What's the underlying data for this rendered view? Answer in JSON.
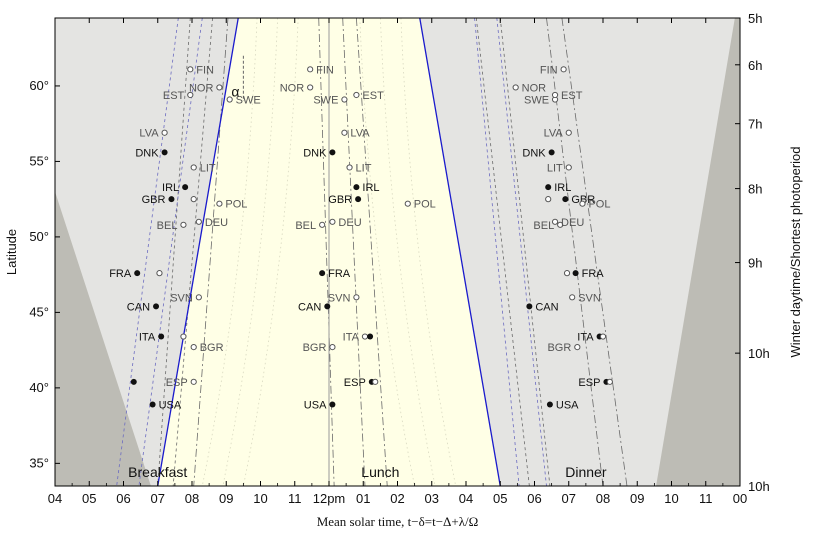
{
  "chart_data": {
    "type": "scatter",
    "xlabel": "Mean solar time, t−δ=t−Δ+λ/Ω",
    "ylabel": "Latitude",
    "y2label": "Winter daytime/Shortest photoperiod",
    "alpha_label": "α",
    "xlim": [
      4,
      24
    ],
    "ylim": [
      33.5,
      64.5
    ],
    "x_ticks": [
      {
        "value": 4,
        "label": "04"
      },
      {
        "value": 5,
        "label": "05"
      },
      {
        "value": 6,
        "label": "06"
      },
      {
        "value": 7,
        "label": "07"
      },
      {
        "value": 8,
        "label": "08"
      },
      {
        "value": 9,
        "label": "09"
      },
      {
        "value": 10,
        "label": "10"
      },
      {
        "value": 11,
        "label": "11"
      },
      {
        "value": 12,
        "label": "12pm"
      },
      {
        "value": 13,
        "label": "01"
      },
      {
        "value": 14,
        "label": "02"
      },
      {
        "value": 15,
        "label": "03"
      },
      {
        "value": 16,
        "label": "04"
      },
      {
        "value": 17,
        "label": "05"
      },
      {
        "value": 18,
        "label": "06"
      },
      {
        "value": 19,
        "label": "07"
      },
      {
        "value": 20,
        "label": "08"
      },
      {
        "value": 21,
        "label": "09"
      },
      {
        "value": 22,
        "label": "10"
      },
      {
        "value": 23,
        "label": "11"
      },
      {
        "value": 24,
        "label": "00"
      }
    ],
    "y_ticks": [
      {
        "value": 35,
        "label": "35°"
      },
      {
        "value": 40,
        "label": "40°"
      },
      {
        "value": 45,
        "label": "45°"
      },
      {
        "value": 50,
        "label": "50°"
      },
      {
        "value": 55,
        "label": "55°"
      },
      {
        "value": 60,
        "label": "60°"
      }
    ],
    "y2_ticks": [
      {
        "value": 64.5,
        "label": "5h"
      },
      {
        "value": 61.4,
        "label": "6h"
      },
      {
        "value": 57.5,
        "label": "7h"
      },
      {
        "value": 53.2,
        "label": "8h"
      },
      {
        "value": 48.3,
        "label": "9h"
      },
      {
        "value": 42.3,
        "label": "10h"
      }
    ],
    "bottom_right_label": "10h",
    "meals": [
      {
        "label": "Breakfast",
        "x": 7.0
      },
      {
        "label": "Lunch",
        "x": 13.5
      },
      {
        "label": "Dinner",
        "x": 19.5
      }
    ],
    "colors": {
      "daylight": "#ffffe6",
      "twilight": "#e4e4e2",
      "night": "#bdbcb5",
      "frame": "#000000",
      "sun_line": "#1a1acc",
      "noon_line": "#999999",
      "dash_line": "#6a6a6a",
      "filled_marker": "#111111",
      "hollow_marker": "#555555",
      "bold_label": "#111111",
      "light_label": "#555555"
    },
    "series": [
      {
        "name": "Breakfast",
        "points": [
          {
            "label": "FIN",
            "x": 7.95,
            "y": 61.1,
            "filled": false,
            "side": "right"
          },
          {
            "label": "NOR",
            "x": 8.8,
            "y": 59.9,
            "filled": false,
            "side": "left"
          },
          {
            "label": "EST",
            "x": 7.95,
            "y": 59.4,
            "filled": false,
            "side": "left"
          },
          {
            "label": "SWE",
            "x": 9.1,
            "y": 59.1,
            "filled": false,
            "side": "right"
          },
          {
            "label": "LVA",
            "x": 7.2,
            "y": 56.9,
            "filled": false,
            "side": "left"
          },
          {
            "label": "DNK",
            "x": 7.2,
            "y": 55.6,
            "filled": true,
            "side": "left"
          },
          {
            "label": "LIT",
            "x": 8.05,
            "y": 54.6,
            "filled": false,
            "side": "right"
          },
          {
            "label": "IRL",
            "x": 7.8,
            "y": 53.3,
            "filled": true,
            "side": "left"
          },
          {
            "label": "GBR",
            "x": 7.4,
            "y": 52.5,
            "filled": true,
            "side": "left"
          },
          {
            "label": "GBR",
            "x": 8.05,
            "y": 52.5,
            "filled": false,
            "side": "none"
          },
          {
            "label": "POL",
            "x": 8.8,
            "y": 52.2,
            "filled": false,
            "side": "right"
          },
          {
            "label": "BEL",
            "x": 7.75,
            "y": 50.8,
            "filled": false,
            "side": "left"
          },
          {
            "label": "DEU",
            "x": 8.2,
            "y": 51.0,
            "filled": false,
            "side": "right"
          },
          {
            "label": "FRA",
            "x": 6.4,
            "y": 47.6,
            "filled": true,
            "side": "left"
          },
          {
            "label": "FRA",
            "x": 7.05,
            "y": 47.6,
            "filled": false,
            "side": "none"
          },
          {
            "label": "SVN",
            "x": 8.2,
            "y": 46.0,
            "filled": false,
            "side": "left"
          },
          {
            "label": "CAN",
            "x": 6.95,
            "y": 45.4,
            "filled": true,
            "side": "left"
          },
          {
            "label": "ITA",
            "x": 7.1,
            "y": 43.4,
            "filled": true,
            "side": "left"
          },
          {
            "label": "ITA",
            "x": 7.75,
            "y": 43.4,
            "filled": false,
            "side": "none"
          },
          {
            "label": "BGR",
            "x": 8.05,
            "y": 42.7,
            "filled": false,
            "side": "right"
          },
          {
            "label": "",
            "x": 6.3,
            "y": 40.4,
            "filled": true,
            "side": "none"
          },
          {
            "label": "ESP",
            "x": 8.05,
            "y": 40.4,
            "filled": false,
            "side": "left"
          },
          {
            "label": "USA",
            "x": 6.85,
            "y": 38.9,
            "filled": true,
            "side": "right"
          }
        ]
      },
      {
        "name": "Lunch",
        "points": [
          {
            "label": "FIN",
            "x": 11.45,
            "y": 61.1,
            "filled": false,
            "side": "right"
          },
          {
            "label": "NOR",
            "x": 11.45,
            "y": 59.9,
            "filled": false,
            "side": "left"
          },
          {
            "label": "SWE",
            "x": 12.45,
            "y": 59.1,
            "filled": false,
            "side": "left"
          },
          {
            "label": "EST",
            "x": 12.8,
            "y": 59.4,
            "filled": false,
            "side": "right"
          },
          {
            "label": "LVA",
            "x": 12.45,
            "y": 56.9,
            "filled": false,
            "side": "right"
          },
          {
            "label": "DNK",
            "x": 12.1,
            "y": 55.6,
            "filled": true,
            "side": "left"
          },
          {
            "label": "LIT",
            "x": 12.6,
            "y": 54.6,
            "filled": false,
            "side": "right"
          },
          {
            "label": "IRL",
            "x": 12.8,
            "y": 53.3,
            "filled": true,
            "side": "right"
          },
          {
            "label": "GBR",
            "x": 12.85,
            "y": 52.5,
            "filled": true,
            "side": "left"
          },
          {
            "label": "POL",
            "x": 14.3,
            "y": 52.2,
            "filled": false,
            "side": "right"
          },
          {
            "label": "BEL",
            "x": 11.8,
            "y": 50.8,
            "filled": false,
            "side": "left"
          },
          {
            "label": "DEU",
            "x": 12.1,
            "y": 51.0,
            "filled": false,
            "side": "right"
          },
          {
            "label": "FRA",
            "x": 11.8,
            "y": 47.6,
            "filled": true,
            "side": "right"
          },
          {
            "label": "SVN",
            "x": 12.8,
            "y": 46.0,
            "filled": false,
            "side": "left"
          },
          {
            "label": "CAN",
            "x": 11.95,
            "y": 45.4,
            "filled": true,
            "side": "left"
          },
          {
            "label": "ITA",
            "x": 13.05,
            "y": 43.4,
            "filled": false,
            "side": "left"
          },
          {
            "label": "ITA",
            "x": 13.2,
            "y": 43.4,
            "filled": true,
            "side": "none"
          },
          {
            "label": "BGR",
            "x": 12.1,
            "y": 42.7,
            "filled": false,
            "side": "left"
          },
          {
            "label": "ESP",
            "x": 13.25,
            "y": 40.4,
            "filled": true,
            "side": "left"
          },
          {
            "label": "ESP",
            "x": 13.35,
            "y": 40.4,
            "filled": false,
            "side": "none"
          },
          {
            "label": "USA",
            "x": 12.1,
            "y": 38.9,
            "filled": true,
            "side": "left"
          }
        ]
      },
      {
        "name": "Dinner",
        "points": [
          {
            "label": "FIN",
            "x": 18.85,
            "y": 61.1,
            "filled": false,
            "side": "left"
          },
          {
            "label": "NOR",
            "x": 17.45,
            "y": 59.9,
            "filled": false,
            "side": "right"
          },
          {
            "label": "SWE",
            "x": 18.6,
            "y": 59.1,
            "filled": false,
            "side": "left"
          },
          {
            "label": "EST",
            "x": 18.6,
            "y": 59.4,
            "filled": false,
            "side": "right"
          },
          {
            "label": "LVA",
            "x": 19.0,
            "y": 56.9,
            "filled": false,
            "side": "left"
          },
          {
            "label": "DNK",
            "x": 18.5,
            "y": 55.6,
            "filled": true,
            "side": "left"
          },
          {
            "label": "LIT",
            "x": 19.0,
            "y": 54.6,
            "filled": false,
            "side": "left"
          },
          {
            "label": "IRL",
            "x": 18.4,
            "y": 53.3,
            "filled": true,
            "side": "right"
          },
          {
            "label": "GBR",
            "x": 18.4,
            "y": 52.5,
            "filled": false,
            "side": "none"
          },
          {
            "label": "GBR",
            "x": 18.9,
            "y": 52.5,
            "filled": true,
            "side": "right"
          },
          {
            "label": "POL",
            "x": 19.4,
            "y": 52.2,
            "filled": false,
            "side": "right"
          },
          {
            "label": "BEL",
            "x": 18.75,
            "y": 50.8,
            "filled": false,
            "side": "left"
          },
          {
            "label": "DEU",
            "x": 18.6,
            "y": 51.0,
            "filled": false,
            "side": "right"
          },
          {
            "label": "FRA",
            "x": 18.95,
            "y": 47.6,
            "filled": false,
            "side": "none"
          },
          {
            "label": "FRA",
            "x": 19.2,
            "y": 47.6,
            "filled": true,
            "side": "right"
          },
          {
            "label": "SVN",
            "x": 19.1,
            "y": 46.0,
            "filled": false,
            "side": "right"
          },
          {
            "label": "CAN",
            "x": 17.85,
            "y": 45.4,
            "filled": true,
            "side": "right"
          },
          {
            "label": "ITA",
            "x": 19.9,
            "y": 43.4,
            "filled": true,
            "side": "left"
          },
          {
            "label": "ITA",
            "x": 20.0,
            "y": 43.4,
            "filled": false,
            "side": "none"
          },
          {
            "label": "BGR",
            "x": 19.25,
            "y": 42.7,
            "filled": false,
            "side": "left"
          },
          {
            "label": "ESP",
            "x": 20.1,
            "y": 40.4,
            "filled": true,
            "side": "left"
          },
          {
            "label": "ESP",
            "x": 20.2,
            "y": 40.4,
            "filled": false,
            "side": "none"
          },
          {
            "label": "USA",
            "x": 18.45,
            "y": 38.9,
            "filled": true,
            "side": "right"
          }
        ]
      }
    ],
    "regions": [
      {
        "name": "daylight",
        "polygon": [
          [
            9.35,
            64.5
          ],
          [
            14.65,
            64.5
          ],
          [
            17.0,
            33.5
          ],
          [
            7.0,
            33.5
          ]
        ]
      },
      {
        "name": "night-left",
        "polygon": [
          [
            4,
            53.0
          ],
          [
            6.8,
            33.5
          ],
          [
            4,
            33.5
          ]
        ]
      },
      {
        "name": "night-right",
        "polygon": [
          [
            23.85,
            64.5
          ],
          [
            24,
            64.5
          ],
          [
            24,
            33.5
          ],
          [
            21.55,
            33.5
          ]
        ]
      }
    ],
    "sun_lines": [
      {
        "name": "sunrise",
        "x": [
          9.35,
          7.0
        ],
        "y": [
          64.5,
          33.5
        ]
      },
      {
        "name": "sunset",
        "x": [
          14.65,
          17.0
        ],
        "y": [
          64.5,
          33.5
        ]
      }
    ],
    "noon_line": {
      "x": 12.0
    },
    "alpha_marker": {
      "x": 9.5,
      "y1": 62.0,
      "y2": 59.0
    }
  }
}
